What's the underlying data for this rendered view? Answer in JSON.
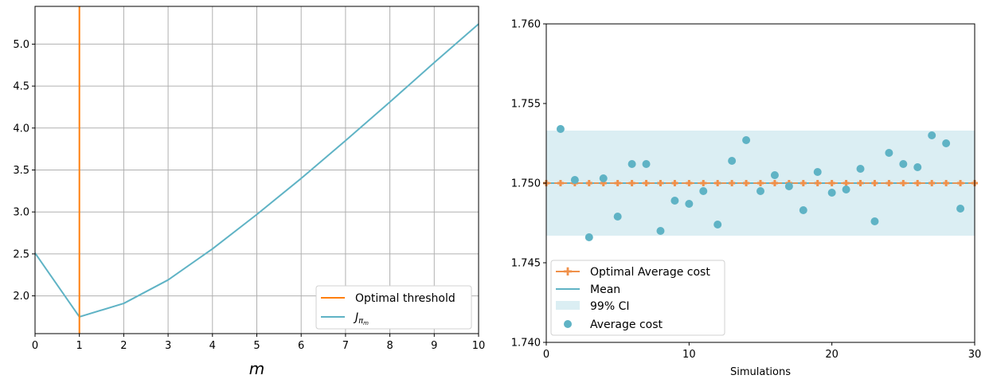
{
  "chart_data": [
    {
      "type": "line",
      "xlabel": "m",
      "xlim": [
        0,
        10
      ],
      "ylim": [
        1.55,
        5.45
      ],
      "xticks": [
        0,
        1,
        2,
        3,
        4,
        5,
        6,
        7,
        8,
        9,
        10
      ],
      "yticks": [
        2.0,
        2.5,
        3.0,
        3.5,
        4.0,
        4.5,
        5.0
      ],
      "xtick_labels": [
        "0",
        "1",
        "2",
        "3",
        "4",
        "5",
        "6",
        "7",
        "8",
        "9",
        "10"
      ],
      "ytick_labels": [
        "2.0",
        "2.5",
        "3.0",
        "3.5",
        "4.0",
        "4.5",
        "5.0"
      ],
      "grid": true,
      "legend_position": "bottom-right",
      "vline": {
        "name": "Optimal threshold",
        "x": 1,
        "color": "#ff7f0e"
      },
      "series": [
        {
          "name": "J_{π_m}",
          "color": "#5fb3c5",
          "x": [
            0,
            1,
            2,
            3,
            4,
            5,
            6,
            7,
            8,
            9,
            10
          ],
          "values": [
            2.51,
            1.75,
            1.91,
            2.19,
            2.56,
            2.97,
            3.4,
            3.85,
            4.31,
            4.78,
            5.24
          ]
        }
      ],
      "legend": [
        "Optimal threshold",
        "J_{π_m}"
      ]
    },
    {
      "type": "scatter",
      "xlabel": "Simulations",
      "xlim": [
        0,
        30
      ],
      "ylim": [
        1.74,
        1.76
      ],
      "xticks": [
        0,
        10,
        20,
        30
      ],
      "yticks": [
        1.74,
        1.745,
        1.75,
        1.755,
        1.76
      ],
      "xtick_labels": [
        "0",
        "10",
        "20",
        "30"
      ],
      "ytick_labels": [
        "1.740",
        "1.745",
        "1.750",
        "1.755",
        "1.760"
      ],
      "grid": false,
      "legend_position": "bottom-left",
      "ci": {
        "name": "99% CI",
        "low": 1.7467,
        "high": 1.7533,
        "color": "#dbeef3"
      },
      "mean": {
        "name": "Mean",
        "value": 1.75,
        "color": "#5fb3c5"
      },
      "optimal": {
        "name": "Optimal Average cost",
        "value": 1.75,
        "color": "#f0904a",
        "x": [
          0,
          1,
          2,
          3,
          4,
          5,
          6,
          7,
          8,
          9,
          10,
          11,
          12,
          13,
          14,
          15,
          16,
          17,
          18,
          19,
          20,
          21,
          22,
          23,
          24,
          25,
          26,
          27,
          28,
          29,
          30
        ]
      },
      "points": {
        "name": "Average cost",
        "color": "#5fb3c5",
        "x": [
          1,
          2,
          3,
          4,
          5,
          6,
          7,
          8,
          9,
          10,
          11,
          12,
          13,
          14,
          15,
          16,
          17,
          18,
          19,
          20,
          21,
          22,
          23,
          24,
          25,
          26,
          27,
          28,
          29
        ],
        "values": [
          1.7534,
          1.7502,
          1.7466,
          1.7503,
          1.7479,
          1.7512,
          1.7512,
          1.747,
          1.7489,
          1.7487,
          1.7495,
          1.7474,
          1.7514,
          1.7527,
          1.7495,
          1.7505,
          1.7498,
          1.7483,
          1.7507,
          1.7494,
          1.7496,
          1.7509,
          1.7476,
          1.7519,
          1.7512,
          1.751,
          1.753,
          1.7525,
          1.7484
        ]
      },
      "legend": [
        "Optimal Average cost",
        "Mean",
        "99% CI",
        "Average cost"
      ]
    }
  ]
}
